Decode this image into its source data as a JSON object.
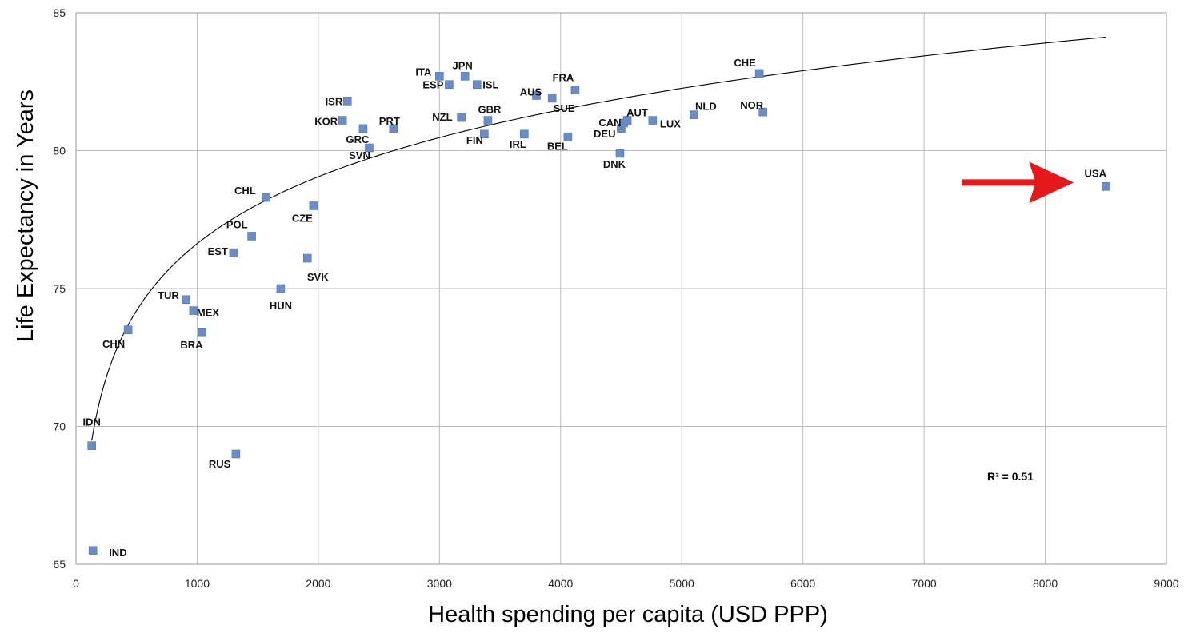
{
  "chart_data": {
    "type": "scatter",
    "title": "",
    "xlabel": "Health spending per capita (USD PPP)",
    "ylabel": "Life Expectancy in Years",
    "xlim": [
      0,
      9000
    ],
    "ylim": [
      65,
      85
    ],
    "x_ticks": [
      "0",
      "1000",
      "2000",
      "3000",
      "4000",
      "5000",
      "6000",
      "7000",
      "8000",
      "9000"
    ],
    "y_ticks": [
      "65",
      "70",
      "75",
      "80",
      "85"
    ],
    "grid": true,
    "trendline": {
      "type": "logarithmic",
      "a": 52.45,
      "b": 3.5,
      "x_range": [
        130,
        8500
      ]
    },
    "r_squared_label": "R² = 0.51",
    "highlight": {
      "target": "USA",
      "color": "#e3191c",
      "shape": "arrow"
    },
    "points": [
      {
        "code": "IND",
        "x": 140,
        "y": 65.5
      },
      {
        "code": "IDN",
        "x": 130,
        "y": 69.3
      },
      {
        "code": "CHN",
        "x": 430,
        "y": 73.5
      },
      {
        "code": "TUR",
        "x": 910,
        "y": 74.6
      },
      {
        "code": "MEX",
        "x": 970,
        "y": 74.2
      },
      {
        "code": "BRA",
        "x": 1040,
        "y": 73.4
      },
      {
        "code": "RUS",
        "x": 1320,
        "y": 69.0
      },
      {
        "code": "EST",
        "x": 1300,
        "y": 76.3
      },
      {
        "code": "POL",
        "x": 1450,
        "y": 76.9
      },
      {
        "code": "CHL",
        "x": 1570,
        "y": 78.3
      },
      {
        "code": "HUN",
        "x": 1690,
        "y": 75.0
      },
      {
        "code": "SVK",
        "x": 1910,
        "y": 76.1
      },
      {
        "code": "CZE",
        "x": 1960,
        "y": 78.0
      },
      {
        "code": "KOR",
        "x": 2200,
        "y": 81.1
      },
      {
        "code": "ISR",
        "x": 2240,
        "y": 81.8
      },
      {
        "code": "GRC",
        "x": 2370,
        "y": 80.8
      },
      {
        "code": "SVN",
        "x": 2420,
        "y": 80.1
      },
      {
        "code": "PRT",
        "x": 2620,
        "y": 80.8
      },
      {
        "code": "ITA",
        "x": 3000,
        "y": 82.7
      },
      {
        "code": "ESP",
        "x": 3080,
        "y": 82.4
      },
      {
        "code": "NZL",
        "x": 3180,
        "y": 81.2
      },
      {
        "code": "JPN",
        "x": 3210,
        "y": 82.7
      },
      {
        "code": "ISL",
        "x": 3310,
        "y": 82.4
      },
      {
        "code": "FIN",
        "x": 3370,
        "y": 80.6
      },
      {
        "code": "GBR",
        "x": 3400,
        "y": 81.1
      },
      {
        "code": "IRL",
        "x": 3700,
        "y": 80.6
      },
      {
        "code": "AUS",
        "x": 3800,
        "y": 82.0
      },
      {
        "code": "SUE",
        "x": 3930,
        "y": 81.9
      },
      {
        "code": "BEL",
        "x": 4060,
        "y": 80.5
      },
      {
        "code": "FRA",
        "x": 4120,
        "y": 82.2
      },
      {
        "code": "DNK",
        "x": 4490,
        "y": 79.9
      },
      {
        "code": "DEU",
        "x": 4500,
        "y": 80.8
      },
      {
        "code": "CAN",
        "x": 4520,
        "y": 81.0
      },
      {
        "code": "AUT",
        "x": 4550,
        "y": 81.1
      },
      {
        "code": "LUX",
        "x": 4760,
        "y": 81.1
      },
      {
        "code": "NLD",
        "x": 5100,
        "y": 81.3
      },
      {
        "code": "CHE",
        "x": 5640,
        "y": 82.8
      },
      {
        "code": "NOR",
        "x": 5670,
        "y": 81.4
      },
      {
        "code": "USA",
        "x": 8500,
        "y": 78.7
      }
    ]
  }
}
